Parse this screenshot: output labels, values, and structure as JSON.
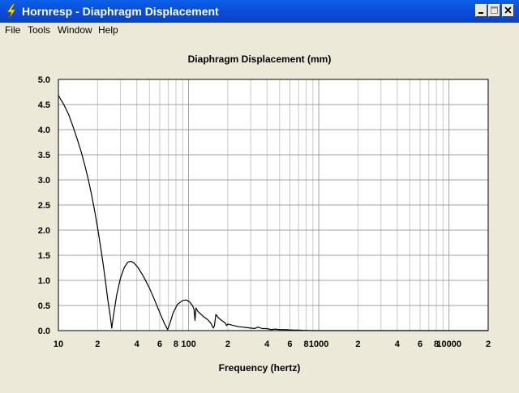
{
  "window": {
    "title": "Hornresp - Diaphragm Displacement"
  },
  "menu": {
    "items": [
      "File",
      "Tools",
      "Window",
      "Help"
    ]
  },
  "titlebar_buttons": [
    "minimize",
    "maximize",
    "close"
  ],
  "chart_data": {
    "type": "line",
    "title": "Diaphragm Displacement (mm)",
    "xlabel": "Frequency (hertz)",
    "ylabel": "",
    "xscale": "log",
    "xlim": [
      10,
      20000
    ],
    "ylim": [
      0,
      5
    ],
    "grid": true,
    "y_ticks": [
      "0.0",
      "0.5",
      "1.0",
      "1.5",
      "2.0",
      "2.5",
      "3.0",
      "3.5",
      "4.0",
      "4.5",
      "5.0"
    ],
    "x_ticks": [
      {
        "value": 10,
        "label": "10"
      },
      {
        "value": 20,
        "label": "2"
      },
      {
        "value": 40,
        "label": "4"
      },
      {
        "value": 60,
        "label": "6"
      },
      {
        "value": 80,
        "label": "8"
      },
      {
        "value": 100,
        "label": "100"
      },
      {
        "value": 200,
        "label": "2"
      },
      {
        "value": 400,
        "label": "4"
      },
      {
        "value": 600,
        "label": "6"
      },
      {
        "value": 800,
        "label": "8"
      },
      {
        "value": 1000,
        "label": "1000"
      },
      {
        "value": 2000,
        "label": "2"
      },
      {
        "value": 4000,
        "label": "4"
      },
      {
        "value": 6000,
        "label": "6"
      },
      {
        "value": 8000,
        "label": "8"
      },
      {
        "value": 10000,
        "label": "10000"
      },
      {
        "value": 20000,
        "label": "2"
      }
    ],
    "series": [
      {
        "color": "#000000",
        "points": [
          [
            10,
            4.68
          ],
          [
            11,
            4.5
          ],
          [
            12,
            4.3
          ],
          [
            13,
            4.05
          ],
          [
            14,
            3.8
          ],
          [
            15,
            3.55
          ],
          [
            16,
            3.28
          ],
          [
            17,
            3.0
          ],
          [
            18,
            2.7
          ],
          [
            19,
            2.38
          ],
          [
            20,
            2.05
          ],
          [
            21,
            1.7
          ],
          [
            22,
            1.35
          ],
          [
            23,
            0.98
          ],
          [
            24,
            0.6
          ],
          [
            25,
            0.3
          ],
          [
            25.7,
            0.05
          ],
          [
            26.5,
            0.3
          ],
          [
            28,
            0.7
          ],
          [
            30,
            1.05
          ],
          [
            32,
            1.25
          ],
          [
            34,
            1.36
          ],
          [
            36,
            1.38
          ],
          [
            38,
            1.35
          ],
          [
            41,
            1.25
          ],
          [
            45,
            1.08
          ],
          [
            50,
            0.85
          ],
          [
            55,
            0.6
          ],
          [
            60,
            0.36
          ],
          [
            65,
            0.15
          ],
          [
            69,
            0.02
          ],
          [
            72,
            0.15
          ],
          [
            76,
            0.35
          ],
          [
            82,
            0.52
          ],
          [
            90,
            0.6
          ],
          [
            96,
            0.61
          ],
          [
            102,
            0.57
          ],
          [
            107,
            0.5
          ],
          [
            110,
            0.43
          ],
          [
            112,
            0.2
          ],
          [
            114,
            0.45
          ],
          [
            118,
            0.38
          ],
          [
            124,
            0.33
          ],
          [
            130,
            0.28
          ],
          [
            140,
            0.22
          ],
          [
            148,
            0.15
          ],
          [
            155,
            0.05
          ],
          [
            158,
            0.1
          ],
          [
            162,
            0.32
          ],
          [
            170,
            0.25
          ],
          [
            180,
            0.2
          ],
          [
            190,
            0.16
          ],
          [
            196,
            0.1
          ],
          [
            200,
            0.13
          ],
          [
            215,
            0.11
          ],
          [
            240,
            0.08
          ],
          [
            260,
            0.07
          ],
          [
            280,
            0.06
          ],
          [
            300,
            0.05
          ],
          [
            320,
            0.04
          ],
          [
            340,
            0.07
          ],
          [
            370,
            0.04
          ],
          [
            400,
            0.04
          ],
          [
            430,
            0.02
          ],
          [
            460,
            0.03
          ],
          [
            500,
            0.02
          ],
          [
            550,
            0.02
          ],
          [
            600,
            0.015
          ],
          [
            650,
            0.01
          ],
          [
            700,
            0.01
          ],
          [
            750,
            0.006
          ],
          [
            800,
            0.004
          ],
          [
            850,
            0.002
          ],
          [
            900,
            0.0
          ],
          [
            1000,
            0.0
          ],
          [
            2000,
            0.0
          ],
          [
            5000,
            0.0
          ],
          [
            10000,
            0.0
          ],
          [
            20000,
            0.0
          ]
        ]
      }
    ]
  }
}
